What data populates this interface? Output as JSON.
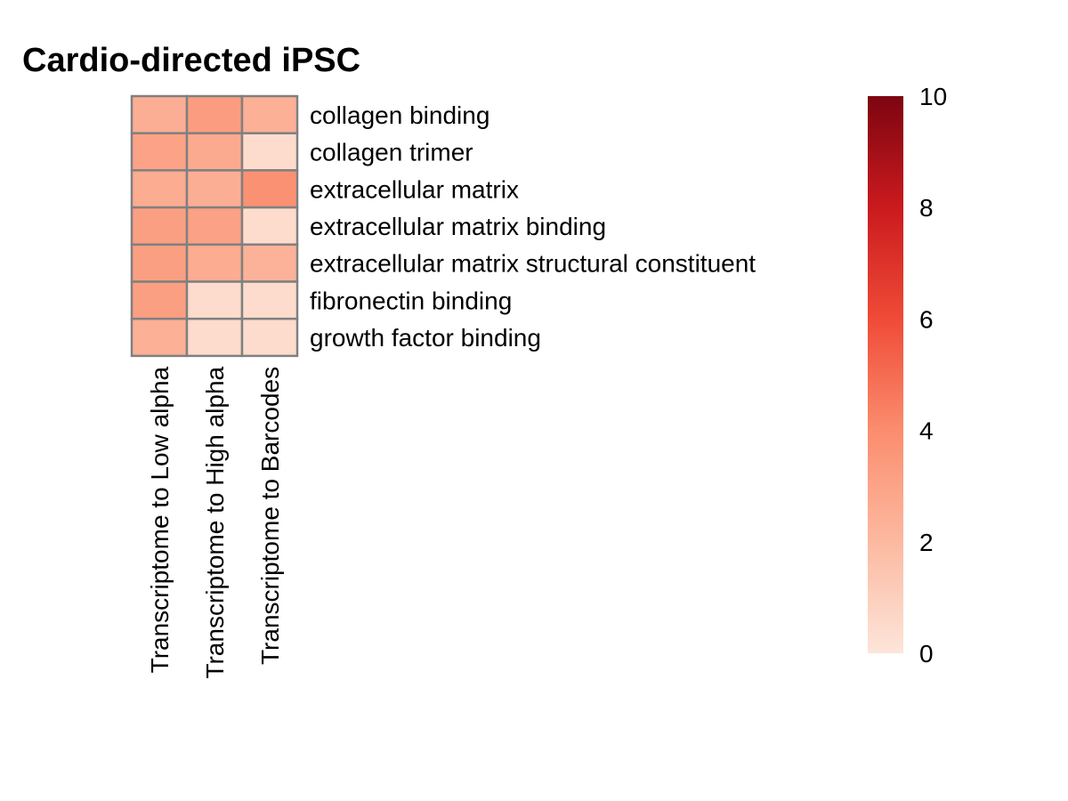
{
  "chart_data": {
    "type": "heatmap",
    "title": "Cardio-directed iPSC",
    "rows": [
      "collagen binding",
      "collagen trimer",
      "extracellular matrix",
      "extracellular matrix binding",
      "extracellular matrix structural constituent",
      "fibronectin binding",
      "growth factor binding"
    ],
    "columns": [
      "Transcriptome to Low alpha",
      "Transcriptome to High alpha",
      "Transcriptome to Barcodes"
    ],
    "values": [
      [
        2.5,
        3.3,
        2.4
      ],
      [
        3.0,
        2.7,
        0.4
      ],
      [
        2.6,
        2.5,
        3.8
      ],
      [
        3.2,
        3.1,
        0.4
      ],
      [
        3.2,
        2.6,
        2.3
      ],
      [
        3.2,
        0.4,
        0.4
      ],
      [
        2.4,
        0.4,
        0.4
      ]
    ],
    "value_range": [
      0,
      10
    ],
    "legend": {
      "ticks": [
        "0",
        "2",
        "4",
        "6",
        "8",
        "10"
      ],
      "placement": "right",
      "colors": [
        "#FDE5DA",
        "#FCB9A0",
        "#FB8D6E",
        "#EF4B37",
        "#CB1A1E",
        "#7C0510"
      ]
    },
    "cell_border_color": "#808080"
  }
}
